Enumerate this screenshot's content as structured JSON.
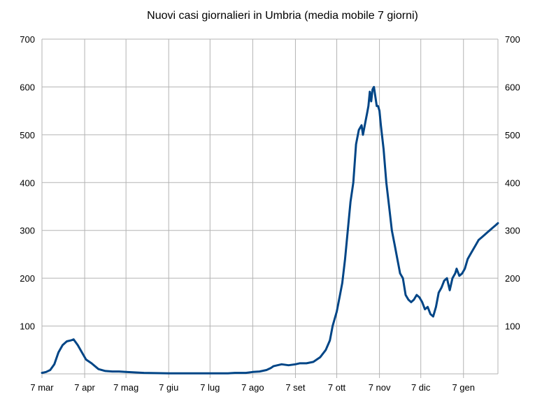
{
  "chart_data": {
    "type": "line",
    "title": "Nuovi casi giornalieri in Umbria (media mobile 7 giorni)",
    "xlabel": "",
    "ylabel": "",
    "ylim": [
      0,
      700
    ],
    "y_ticks": [
      100,
      200,
      300,
      400,
      500,
      600,
      700
    ],
    "x_ticks": [
      "7 mar",
      "7 apr",
      "7 mag",
      "7 giu",
      "7 lug",
      "7 ago",
      "7 set",
      "7 ott",
      "7 nov",
      "7 dic",
      "7 gen"
    ],
    "x_tick_dates": [
      "2020-03-07",
      "2020-04-07",
      "2020-05-07",
      "2020-06-07",
      "2020-07-07",
      "2020-08-07",
      "2020-09-07",
      "2020-10-07",
      "2020-11-07",
      "2020-12-07",
      "2021-01-07"
    ],
    "xlim": [
      "2020-03-07",
      "2021-02-01"
    ],
    "grid": true,
    "secondary_y_axis": true,
    "legend": "none",
    "series_color": "#004586",
    "series": [
      {
        "x": [
          "2020-03-07",
          "2020-03-10",
          "2020-03-13",
          "2020-03-16",
          "2020-03-19",
          "2020-03-22",
          "2020-03-25",
          "2020-03-28",
          "2020-03-30",
          "2020-04-02",
          "2020-04-05",
          "2020-04-08",
          "2020-04-12",
          "2020-04-17",
          "2020-04-22",
          "2020-04-27",
          "2020-05-02",
          "2020-05-07",
          "2020-05-20",
          "2020-06-07",
          "2020-06-20",
          "2020-07-07",
          "2020-07-20",
          "2020-07-25",
          "2020-08-02",
          "2020-08-07",
          "2020-08-12",
          "2020-08-17",
          "2020-08-20",
          "2020-08-22",
          "2020-08-25",
          "2020-08-28",
          "2020-09-02",
          "2020-09-07",
          "2020-09-10",
          "2020-09-15",
          "2020-09-20",
          "2020-09-25",
          "2020-09-29",
          "2020-10-02",
          "2020-10-04",
          "2020-10-07",
          "2020-10-09",
          "2020-10-11",
          "2020-10-13",
          "2020-10-15",
          "2020-10-17",
          "2020-10-19",
          "2020-10-21",
          "2020-10-23",
          "2020-10-25",
          "2020-10-26",
          "2020-10-28",
          "2020-10-29",
          "2020-10-30",
          "2020-10-31",
          "2020-11-01",
          "2020-11-02",
          "2020-11-03",
          "2020-11-04",
          "2020-11-05",
          "2020-11-06",
          "2020-11-07",
          "2020-11-08",
          "2020-11-10",
          "2020-11-12",
          "2020-11-14",
          "2020-11-16",
          "2020-11-18",
          "2020-11-20",
          "2020-11-22",
          "2020-11-24",
          "2020-11-26",
          "2020-11-28",
          "2020-11-30",
          "2020-12-02",
          "2020-12-04",
          "2020-12-06",
          "2020-12-08",
          "2020-12-10",
          "2020-12-12",
          "2020-12-14",
          "2020-12-16",
          "2020-12-18",
          "2020-12-20",
          "2020-12-22",
          "2020-12-24",
          "2020-12-26",
          "2020-12-28",
          "2020-12-30",
          "2021-01-01",
          "2021-01-02",
          "2021-01-04",
          "2021-01-06",
          "2021-01-08",
          "2021-01-10",
          "2021-01-12",
          "2021-01-14",
          "2021-01-16",
          "2021-01-18",
          "2021-01-20",
          "2021-01-22",
          "2021-01-24",
          "2021-01-26",
          "2021-01-28",
          "2021-01-30",
          "2021-02-01"
        ],
        "values": [
          2,
          4,
          8,
          20,
          45,
          60,
          68,
          70,
          72,
          60,
          45,
          30,
          22,
          10,
          6,
          5,
          5,
          4,
          2,
          1,
          1,
          1,
          1,
          2,
          2,
          4,
          5,
          8,
          12,
          16,
          18,
          20,
          18,
          20,
          22,
          22,
          25,
          35,
          50,
          70,
          100,
          130,
          160,
          190,
          240,
          300,
          360,
          400,
          480,
          510,
          520,
          500,
          530,
          545,
          560,
          590,
          570,
          595,
          600,
          580,
          560,
          560,
          550,
          520,
          470,
          400,
          350,
          300,
          270,
          240,
          210,
          200,
          165,
          155,
          150,
          155,
          165,
          160,
          150,
          135,
          140,
          125,
          120,
          140,
          170,
          180,
          195,
          200,
          175,
          200,
          210,
          220,
          205,
          210,
          220,
          240,
          250,
          260,
          270,
          280,
          285,
          290,
          295,
          300,
          305,
          310,
          315
        ]
      }
    ]
  }
}
